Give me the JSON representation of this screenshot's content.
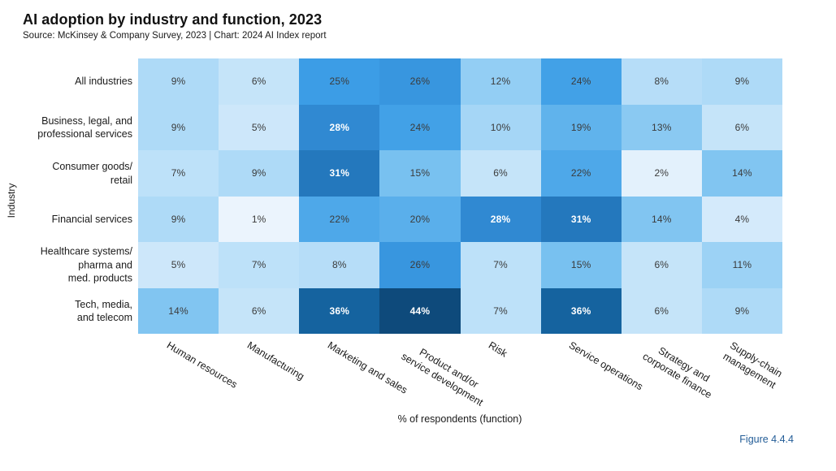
{
  "header": {
    "title": "AI adoption by industry and function, 2023",
    "source": "Source: McKinsey & Company Survey, 2023 | Chart: 2024 AI Index report"
  },
  "figure_label": "Figure 4.4.4",
  "chart_data": {
    "type": "heatmap",
    "title": "AI adoption by industry and function, 2023",
    "xlabel": "% of respondents (function)",
    "ylabel": "Industry",
    "unit": "%",
    "rows": [
      "All industries",
      "Business, legal, and\nprofessional services",
      "Consumer goods/\nretail",
      "Financial services",
      "Healthcare systems/\npharma and\nmed. products",
      "Tech, media,\nand telecom"
    ],
    "columns": [
      "Human resources",
      "Manufacturing",
      "Marketing and sales",
      "Product and/or\nservice development",
      "Risk",
      "Service operations",
      "Strategy and\ncorporate finance",
      "Supply-chain\nmanagement"
    ],
    "values": [
      [
        9,
        6,
        25,
        26,
        12,
        24,
        8,
        9
      ],
      [
        9,
        5,
        28,
        24,
        10,
        19,
        13,
        6
      ],
      [
        7,
        9,
        31,
        15,
        6,
        22,
        2,
        14
      ],
      [
        9,
        1,
        22,
        20,
        28,
        31,
        14,
        4
      ],
      [
        5,
        7,
        8,
        26,
        7,
        15,
        6,
        11
      ],
      [
        14,
        6,
        36,
        44,
        7,
        36,
        6,
        9
      ]
    ],
    "color_scale": {
      "stops": [
        [
          1,
          "#ebf4fd"
        ],
        [
          9,
          "#aedaf7"
        ],
        [
          15,
          "#78c1f0"
        ],
        [
          25,
          "#3c9de6"
        ],
        [
          28,
          "#3089d2"
        ],
        [
          31,
          "#2478bd"
        ],
        [
          36,
          "#15639f"
        ],
        [
          44,
          "#0e4a7b"
        ]
      ],
      "white_text_min": 28
    },
    "text_colors": {
      "dark": "#3b3b3b",
      "light": "#ffffff"
    },
    "legend": "none",
    "grid": "off"
  }
}
